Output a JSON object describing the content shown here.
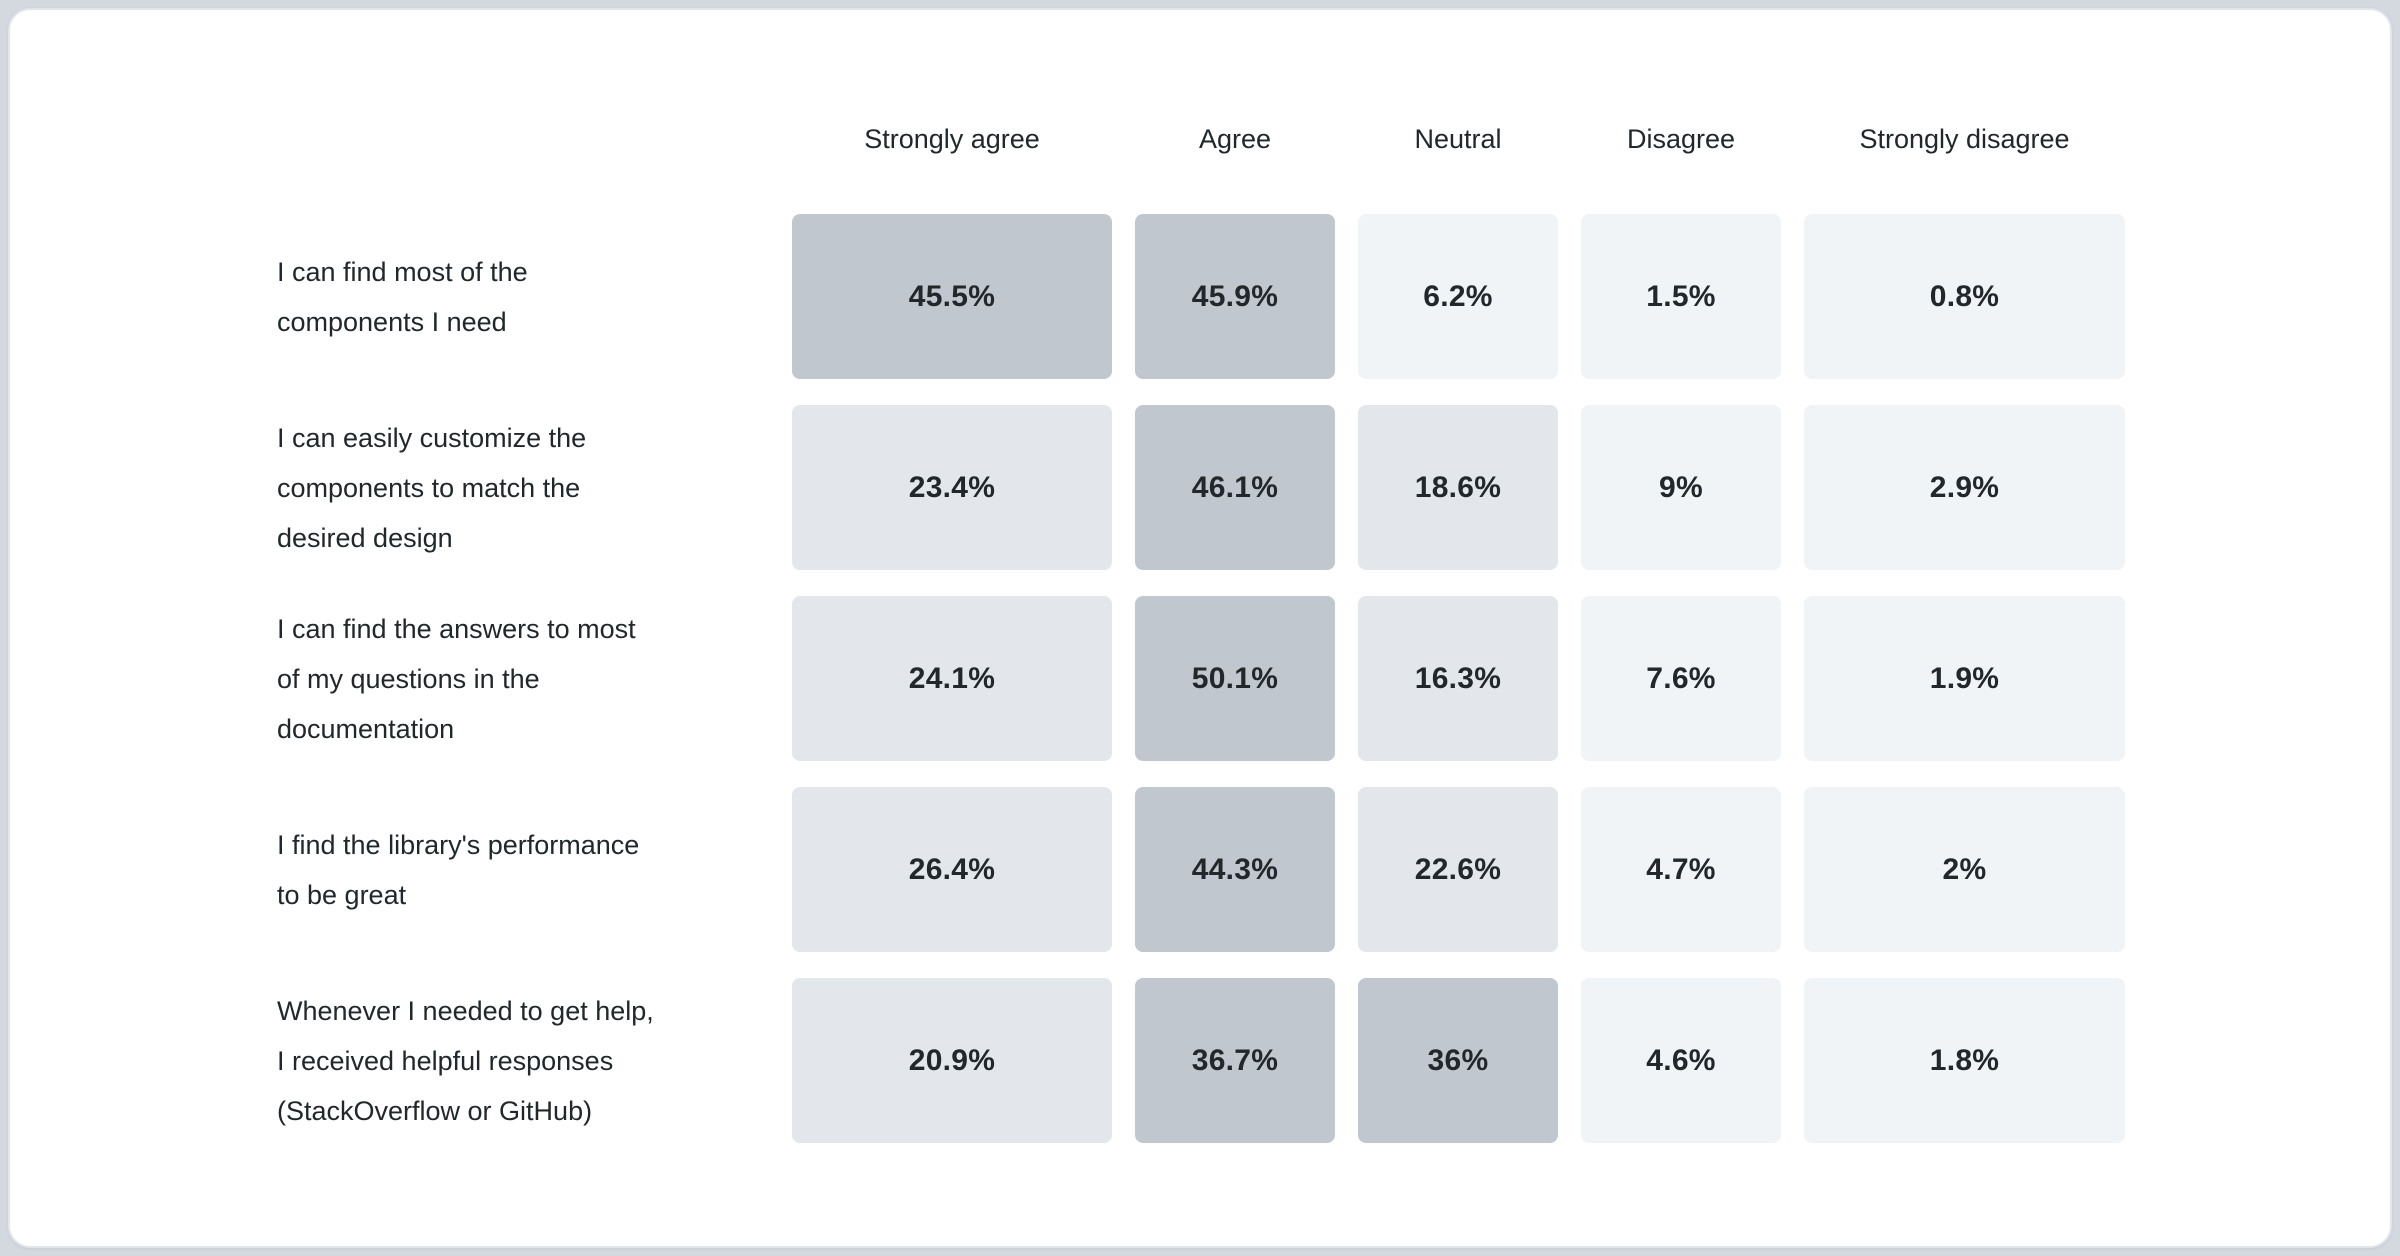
{
  "page": {
    "background_color": "#d3d9df",
    "card_background": "#ffffff",
    "card_border_color": "#e2e5e9",
    "text_color": "#21272a"
  },
  "chart_data": {
    "type": "heatmap",
    "title": "",
    "xlabel": "",
    "ylabel": "",
    "legend": "none",
    "columns": [
      "Strongly agree",
      "Agree",
      "Neutral",
      "Disagree",
      "Strongly disagree"
    ],
    "rows": [
      {
        "label": "I can find most of the components I need",
        "lines": [
          "I can find most of the",
          "components I need"
        ],
        "values": [
          45.5,
          45.9,
          6.2,
          1.5,
          0.8
        ],
        "value_labels": [
          "45.5%",
          "45.9%",
          "6.2%",
          "1.5%",
          "0.8%"
        ]
      },
      {
        "label": "I can easily customize the components to match the desired design",
        "lines": [
          "I can easily customize the",
          "components to match the",
          "desired design"
        ],
        "values": [
          23.4,
          46.1,
          18.6,
          9,
          2.9
        ],
        "value_labels": [
          "23.4%",
          "46.1%",
          "18.6%",
          "9%",
          "2.9%"
        ]
      },
      {
        "label": "I can find the answers to most of my questions in the documentation",
        "lines": [
          "I can find the answers to most",
          "of my questions in the",
          "documentation"
        ],
        "values": [
          24.1,
          50.1,
          16.3,
          7.6,
          1.9
        ],
        "value_labels": [
          "24.1%",
          "50.1%",
          "16.3%",
          "7.6%",
          "1.9%"
        ]
      },
      {
        "label": "I find the library's performance to be great",
        "lines": [
          "I find the library's performance",
          "to be great"
        ],
        "values": [
          26.4,
          44.3,
          22.6,
          4.7,
          2
        ],
        "value_labels": [
          "26.4%",
          "44.3%",
          "22.6%",
          "4.7%",
          "2%"
        ]
      },
      {
        "label": "Whenever I needed to get help, I received helpful responses (StackOverflow or GitHub)",
        "lines": [
          "Whenever I needed to get help,",
          "I received helpful responses",
          "(StackOverflow or GitHub)"
        ],
        "values": [
          20.9,
          36.7,
          36,
          4.6,
          1.8
        ],
        "value_labels": [
          "20.9%",
          "36.7%",
          "36%",
          "4.6%",
          "1.8%"
        ]
      }
    ],
    "color_scale": {
      "description": "cell shade buckets by percentage value",
      "buckets": [
        {
          "min": 30,
          "color": "#c1c7cf"
        },
        {
          "min": 10,
          "color": "#e3e7eb"
        },
        {
          "min": 0,
          "color": "#f1f4f7"
        }
      ]
    }
  }
}
